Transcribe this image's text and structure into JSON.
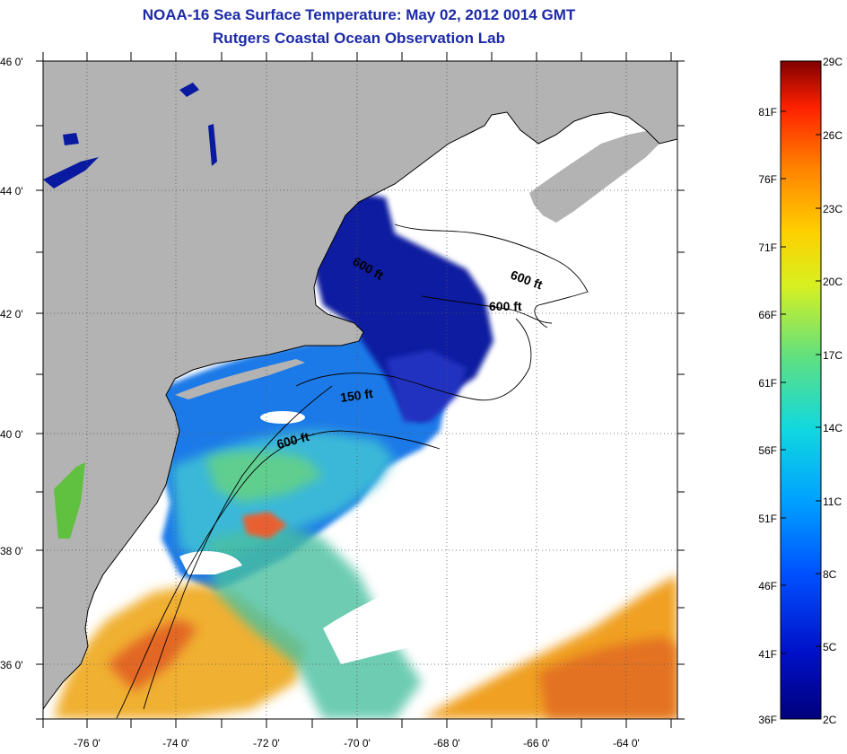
{
  "title": {
    "line1": "NOAA-16 Sea Surface Temperature:  May 02, 2012 0014 GMT",
    "line2": "Rutgers Coastal Ocean Observation Lab"
  },
  "map": {
    "lat_labels": [
      "46 0'",
      "44 0'",
      "42 0'",
      "40 0'",
      "38 0'",
      "36 0'"
    ],
    "lon_labels": [
      "-76 0'",
      "-74 0'",
      "-72 0'",
      "-70 0'",
      "-68 0'",
      "-66 0'",
      "-64 0'"
    ],
    "contour_labels": [
      "600 ft",
      "600 ft",
      "600 ft",
      "150 ft",
      "600 ft"
    ],
    "colors": {
      "land": "#b3b3b3",
      "cloud": "#ffffff",
      "gulf_of_maine": "#0a1aa0",
      "shelf": "#1e7ae8",
      "slope": "#3ab8d8",
      "warm": "#f0a020",
      "hot": "#e05a20"
    }
  },
  "colorbar": {
    "celsius_labels": [
      "29C",
      "26C",
      "23C",
      "20C",
      "17C",
      "14C",
      "11C",
      "8C",
      "5C",
      "2C"
    ],
    "fahrenheit_labels": [
      "81F",
      "76F",
      "71F",
      "66F",
      "61F",
      "56F",
      "51F",
      "46F",
      "41F",
      "36F"
    ],
    "range_c": [
      2,
      29
    ]
  }
}
